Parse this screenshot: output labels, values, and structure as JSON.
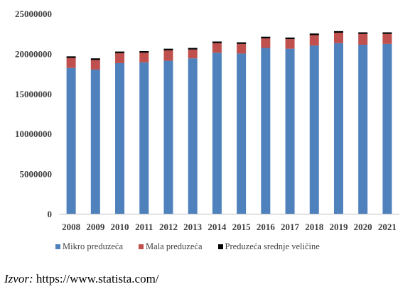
{
  "chart_data": {
    "type": "bar",
    "stacked": true,
    "categories": [
      "2008",
      "2009",
      "2010",
      "2011",
      "2012",
      "2013",
      "2014",
      "2015",
      "2016",
      "2017",
      "2018",
      "2019",
      "2020",
      "2021"
    ],
    "series": [
      {
        "name": "Mikro preduzeća",
        "color": "#4f81bd",
        "values": [
          18200000,
          18000000,
          18800000,
          18900000,
          19100000,
          19400000,
          20100000,
          20000000,
          20700000,
          20600000,
          21000000,
          21300000,
          21100000,
          21200000
        ]
      },
      {
        "name": "Mala preduzeća",
        "color": "#c0504d",
        "values": [
          1250000,
          1200000,
          1250000,
          1200000,
          1300000,
          1100000,
          1200000,
          1200000,
          1200000,
          1200000,
          1300000,
          1300000,
          1350000,
          1250000
        ]
      },
      {
        "name": "Preduzeća srednje veličine",
        "color": "#000000",
        "values": [
          200000,
          200000,
          200000,
          200000,
          200000,
          200000,
          200000,
          200000,
          200000,
          200000,
          200000,
          200000,
          200000,
          200000
        ]
      }
    ],
    "y_ticks": [
      "0",
      "5000000",
      "10000000",
      "15000000",
      "20000000",
      "25000000"
    ],
    "ylim": [
      0,
      25000000
    ],
    "grid": false,
    "legend_position": "bottom"
  },
  "source": {
    "label": "Izvor:",
    "url": "https://www.statista.com/"
  }
}
